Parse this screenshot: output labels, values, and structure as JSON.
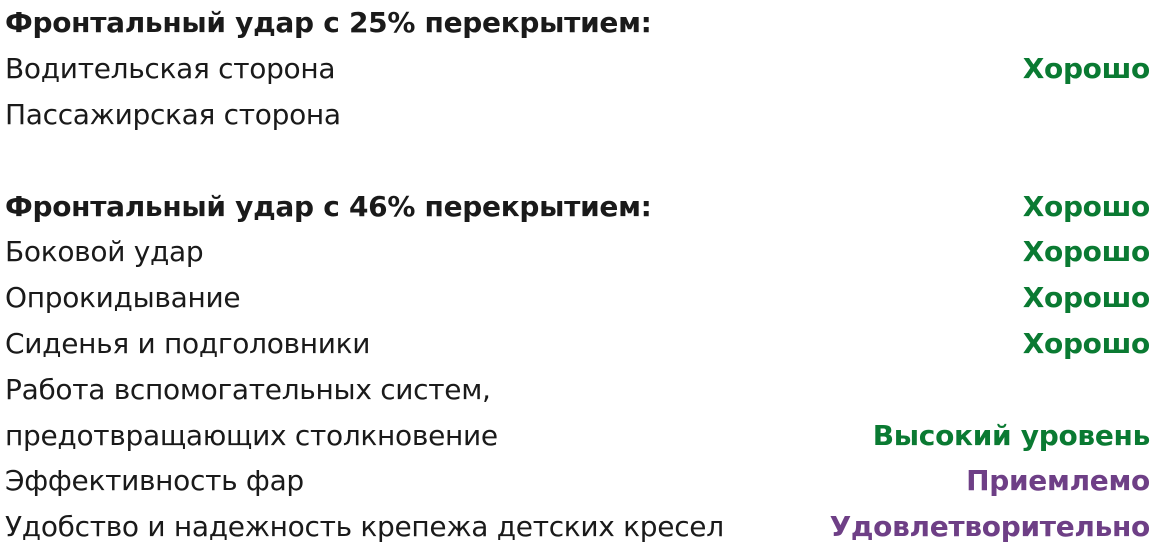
{
  "colors": {
    "good": "#0a7a32",
    "acceptable": "#6e3f86"
  },
  "rows": [
    {
      "label": "Фронтальный удар с 25% перекрытием:",
      "value": "",
      "heading": true
    },
    {
      "label": "Водительская сторона",
      "value": "Хорошо",
      "status": "good"
    },
    {
      "label": "Пассажирская сторона",
      "value": ""
    },
    {
      "label": "Фронтальный удар с 46% перекрытием:",
      "value": "Хорошо",
      "heading": true,
      "status": "good"
    },
    {
      "label": "Боковой удар",
      "value": "Хорошо",
      "status": "good"
    },
    {
      "label": "Опрокидывание",
      "value": "Хорошо",
      "status": "good"
    },
    {
      "label": "Сиденья и подголовники",
      "value": "Хорошо",
      "status": "good"
    },
    {
      "label": "Работа вспомогательных систем,",
      "value": ""
    },
    {
      "label": "предотвращающих столкновение",
      "value": "Высокий уровень",
      "status": "good"
    },
    {
      "label": "Эффективность фар",
      "value": "Приемлемо",
      "status": "acceptable"
    },
    {
      "label": "Удобство и надежность крепежа детских кресел",
      "value": "Удовлетворительно",
      "status": "acceptable"
    }
  ]
}
